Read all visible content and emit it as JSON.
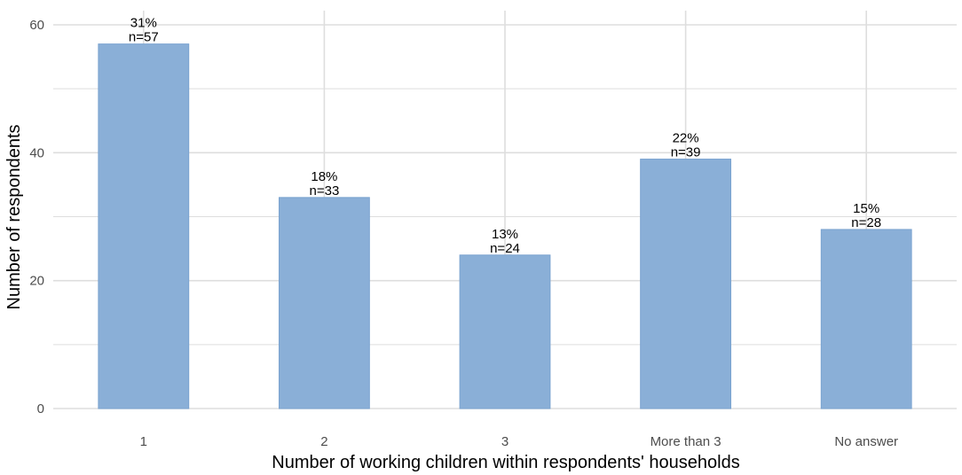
{
  "chart_data": {
    "type": "bar",
    "title": "",
    "xlabel": "Number of working children within respondents' households",
    "ylabel": "Number of respondents",
    "categories": [
      "1",
      "2",
      "3",
      "More than 3",
      "No answer"
    ],
    "values": [
      57,
      33,
      24,
      39,
      28
    ],
    "pct_labels": [
      "31%",
      "18%",
      "13%",
      "22%",
      "15%"
    ],
    "n_labels": [
      "n=57",
      "n=33",
      "n=24",
      "n=39",
      "n=28"
    ],
    "ylim": [
      0,
      60
    ],
    "yticks": [
      0,
      20,
      40,
      60
    ],
    "y_minor_ticks": [
      10,
      30,
      50
    ],
    "grid": true,
    "legend": "none",
    "colors": {
      "bar": "#8aafd7",
      "bar_border": "#7aa3d0",
      "grid": "#dedede"
    }
  }
}
